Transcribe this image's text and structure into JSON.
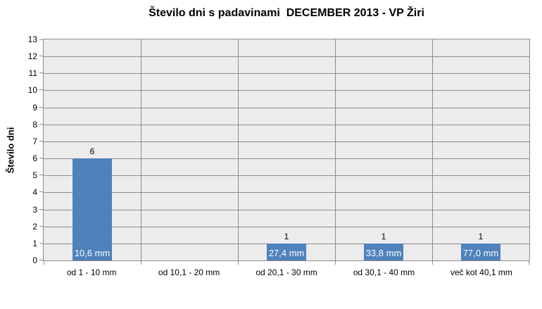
{
  "chart_data": {
    "type": "bar",
    "title": "Število dni s padavinami  DECEMBER 2013 - VP Žiri",
    "ylabel": "Število dni",
    "xlabel": "",
    "categories": [
      "od 1 - 10 mm",
      "od 10,1 - 20 mm",
      "od 20,1 - 30 mm",
      "od 30,1 - 40 mm",
      "več kot 40,1 mm"
    ],
    "values": [
      6,
      0,
      1,
      1,
      1
    ],
    "bar_inner_labels": [
      "10,6 mm",
      "",
      "27,4 mm",
      "33,8 mm",
      "77,0 mm"
    ],
    "ylim": [
      0,
      13
    ],
    "ytick_step": 1,
    "grid": true,
    "legend": "none",
    "colors": {
      "bar": "#4F81BD",
      "plot_background": "#ECECEC",
      "gridline": "#8C8C8C",
      "value_label": "#000000",
      "bar_inner_label": "#FFFFFF",
      "title": "#000000"
    }
  }
}
